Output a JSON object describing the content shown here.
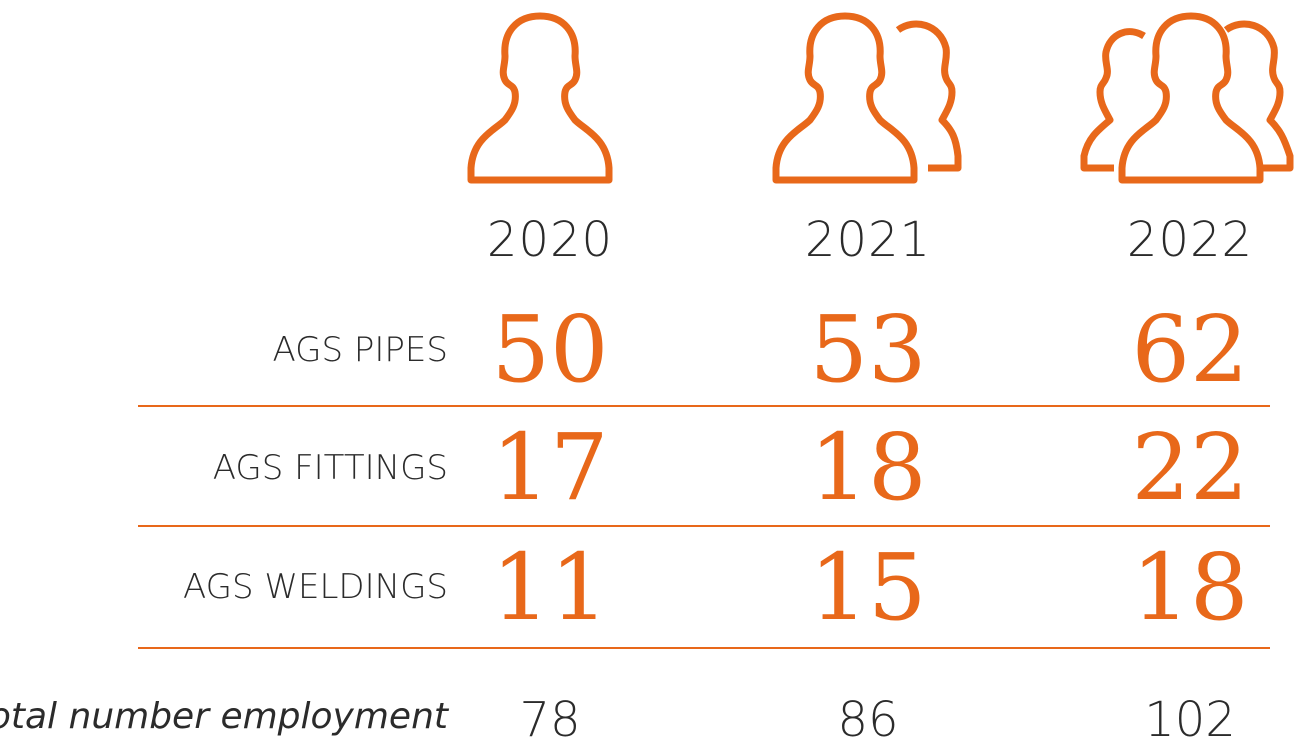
{
  "accent_color": "#e8681a",
  "icons": [
    "person-icon",
    "two-people-icon",
    "three-people-icon"
  ],
  "chart_data": {
    "type": "table",
    "columns": [
      "2020",
      "2021",
      "2022"
    ],
    "rows": [
      {
        "label": "AGS PIPES",
        "values": [
          50,
          53,
          62
        ]
      },
      {
        "label": "AGS FITTINGS",
        "values": [
          17,
          18,
          22
        ]
      },
      {
        "label": "AGS WELDINGS",
        "values": [
          11,
          15,
          18
        ]
      }
    ],
    "total": {
      "label": "Total number employment",
      "values": [
        78,
        86,
        102
      ]
    }
  }
}
